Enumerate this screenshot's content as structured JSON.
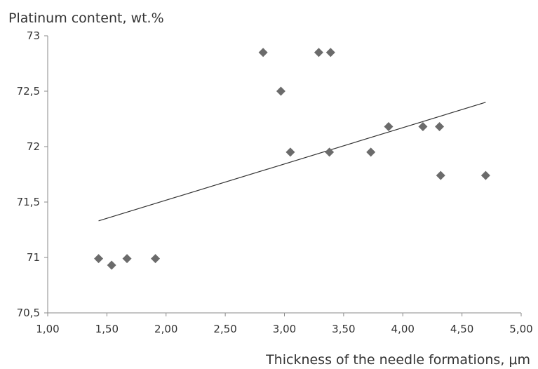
{
  "chart_data": {
    "type": "scatter",
    "ylabel": "Platinum content, wt.%",
    "xlabel": "Thickness of the needle formations, μm",
    "xlim": [
      1.0,
      5.0
    ],
    "ylim": [
      70.5,
      73.0
    ],
    "x_ticks": [
      1.0,
      1.5,
      2.0,
      2.5,
      3.0,
      3.5,
      4.0,
      4.5,
      5.0
    ],
    "x_tick_labels": [
      "1,00",
      "1,50",
      "2,00",
      "2,50",
      "3,00",
      "3,50",
      "4,00",
      "4,50",
      "5,00"
    ],
    "y_ticks": [
      70.5,
      71.0,
      71.5,
      72.0,
      72.5,
      73.0
    ],
    "y_tick_labels": [
      "70,5",
      "71",
      "71,5",
      "72",
      "72,5",
      "73"
    ],
    "grid": false,
    "marker": "diamond",
    "marker_color": "#6b6b6b",
    "trendline_color": "#333333",
    "points": [
      {
        "x": 1.43,
        "y": 70.99
      },
      {
        "x": 1.54,
        "y": 70.93
      },
      {
        "x": 1.67,
        "y": 70.99
      },
      {
        "x": 1.91,
        "y": 70.99
      },
      {
        "x": 2.82,
        "y": 72.85
      },
      {
        "x": 2.97,
        "y": 72.5
      },
      {
        "x": 3.05,
        "y": 71.95
      },
      {
        "x": 3.29,
        "y": 72.85
      },
      {
        "x": 3.39,
        "y": 72.85
      },
      {
        "x": 3.38,
        "y": 71.95
      },
      {
        "x": 3.73,
        "y": 71.95
      },
      {
        "x": 3.88,
        "y": 72.18
      },
      {
        "x": 4.17,
        "y": 72.18
      },
      {
        "x": 4.31,
        "y": 72.18
      },
      {
        "x": 4.32,
        "y": 71.74
      },
      {
        "x": 4.7,
        "y": 71.74
      }
    ],
    "trendline": {
      "x": [
        1.43,
        4.7
      ],
      "y": [
        71.33,
        72.4
      ]
    }
  }
}
